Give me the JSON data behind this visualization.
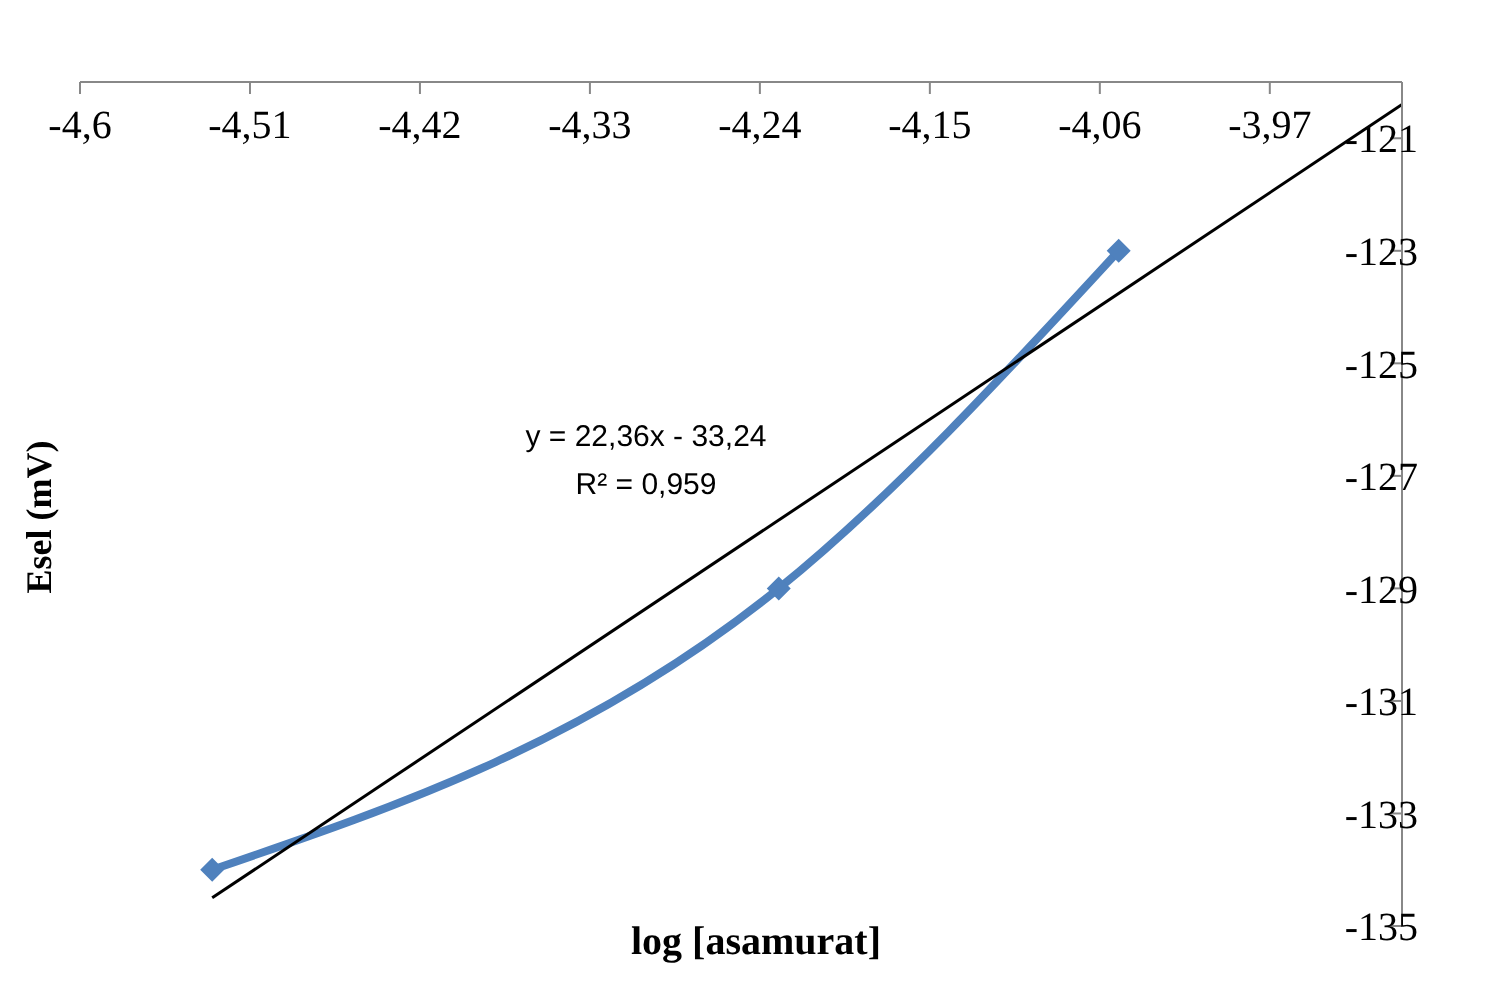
{
  "chart_data": {
    "type": "line",
    "xlabel": "log [asamurat]",
    "ylabel": "Esel (mV)",
    "xlim": [
      -4.6,
      -3.9
    ],
    "xticks": [
      {
        "value": -4.6,
        "label": "-4,6"
      },
      {
        "value": -4.51,
        "label": "-4,51"
      },
      {
        "value": -4.42,
        "label": "-4,42"
      },
      {
        "value": -4.33,
        "label": "-4,33"
      },
      {
        "value": -4.24,
        "label": "-4,24"
      },
      {
        "value": -4.15,
        "label": "-4,15"
      },
      {
        "value": -4.06,
        "label": "-4,06"
      },
      {
        "value": -3.97,
        "label": "-3,97"
      }
    ],
    "ylim": [
      -135,
      -120
    ],
    "yticks": [
      -121,
      -123,
      -125,
      -127,
      -129,
      -131,
      -133,
      -135
    ],
    "series": [
      {
        "color": "#4f81bd",
        "x": [
          -4.53,
          -4.23,
          -4.05
        ],
        "values": [
          -134,
          -129,
          -123
        ],
        "marker": "diamond",
        "line_style": "solid"
      },
      {
        "type": "line",
        "color": "#000000",
        "x": [
          -4.53,
          -3.9
        ],
        "values": [
          -134.5,
          -120.4
        ],
        "marker": "none",
        "line_style": "solid"
      }
    ],
    "annotations": [
      "y = 22,36x - 33,24",
      "R² = 0,959"
    ]
  }
}
